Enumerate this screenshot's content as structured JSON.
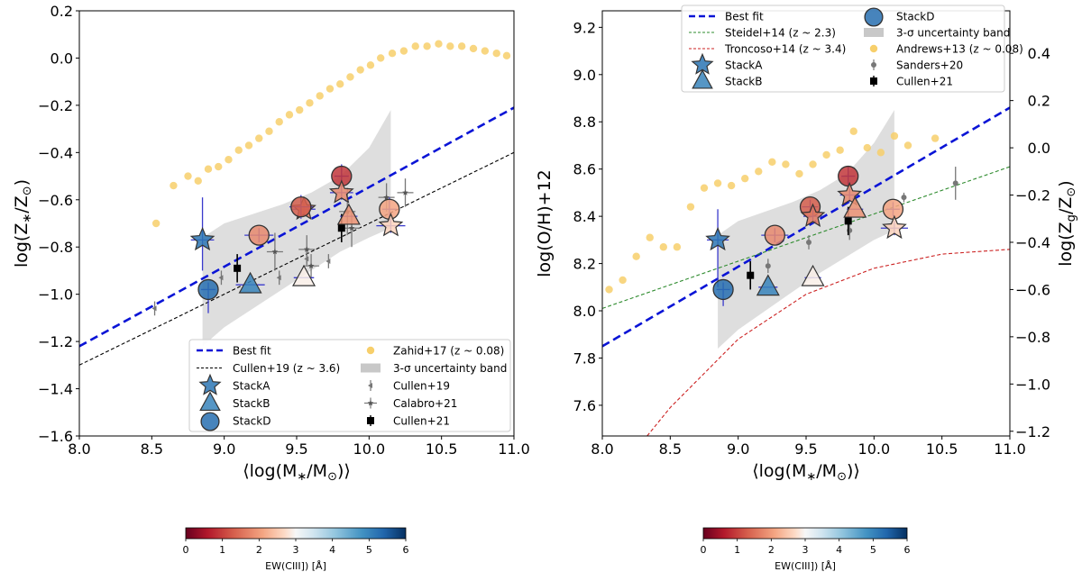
{
  "chart_data": [
    {
      "type": "scatter",
      "panel": "left",
      "xlabel": "⟨log(M*/M☉)⟩",
      "ylabel": "log(Z*/Z☉)",
      "xlim": [
        8.0,
        11.0
      ],
      "ylim": [
        -1.6,
        0.2
      ],
      "xticks": [
        8.0,
        8.5,
        9.0,
        9.5,
        10.0,
        10.5,
        11.0
      ],
      "yticks": [
        -1.6,
        -1.4,
        -1.2,
        -1.0,
        -0.8,
        -0.6,
        -0.4,
        -0.2,
        0.0,
        0.2
      ],
      "xtick_labels": [
        "8.0",
        "8.5",
        "9.0",
        "9.5",
        "10.0",
        "10.5",
        "11.0"
      ],
      "ytick_labels": [
        "−1.6",
        "−1.4",
        "−1.2",
        "−1.0",
        "−0.8",
        "−0.6",
        "−0.4",
        "−0.2",
        "0.0",
        "0.2"
      ],
      "lines": [
        {
          "name": "Best fit",
          "x": [
            8.0,
            11.0
          ],
          "y": [
            -1.22,
            -0.21
          ],
          "color": "#0a14d6",
          "style": "dashed-thick"
        },
        {
          "name": "Cullen+19 (z ~ 3.6)",
          "x": [
            8.0,
            11.0
          ],
          "y": [
            -1.3,
            -0.4
          ],
          "color": "#000000",
          "style": "dashed-thin"
        }
      ],
      "band": {
        "name": "3-σ uncertainty band",
        "x": [
          8.85,
          9.0,
          9.2,
          9.4,
          9.6,
          9.8,
          10.0,
          10.15
        ],
        "upper": [
          -0.76,
          -0.7,
          -0.66,
          -0.62,
          -0.57,
          -0.5,
          -0.38,
          -0.22
        ],
        "lower": [
          -1.22,
          -1.14,
          -1.06,
          -0.98,
          -0.9,
          -0.82,
          -0.76,
          -0.72
        ]
      },
      "reference": {
        "name": "Zahid+17 (z ~ 0.08)",
        "x": [
          8.53,
          8.65,
          8.75,
          8.82,
          8.89,
          8.96,
          9.03,
          9.1,
          9.17,
          9.24,
          9.31,
          9.38,
          9.45,
          9.52,
          9.59,
          9.66,
          9.73,
          9.8,
          9.87,
          9.94,
          10.01,
          10.08,
          10.16,
          10.24,
          10.32,
          10.4,
          10.48,
          10.56,
          10.64,
          10.72,
          10.8,
          10.88,
          10.95
        ],
        "y": [
          -0.7,
          -0.54,
          -0.5,
          -0.52,
          -0.47,
          -0.46,
          -0.43,
          -0.39,
          -0.37,
          -0.34,
          -0.31,
          -0.27,
          -0.24,
          -0.22,
          -0.19,
          -0.16,
          -0.13,
          -0.11,
          -0.08,
          -0.05,
          -0.03,
          0.0,
          0.02,
          0.03,
          0.05,
          0.05,
          0.06,
          0.05,
          0.05,
          0.04,
          0.03,
          0.02,
          0.01
        ],
        "color": "#f7cf6b"
      },
      "stacks": [
        {
          "name": "StackA",
          "marker": "star",
          "x": 8.85,
          "y": -0.77,
          "ew": 5.2,
          "xerr": 0.08,
          "yerr": [
            0.13,
            0.18
          ]
        },
        {
          "name": "StackB",
          "marker": "triangle",
          "x": 9.18,
          "y": -0.96,
          "ew": 5.0,
          "xerr": 0.1,
          "yerr": [
            0.0,
            0.0
          ]
        },
        {
          "name": "StackD",
          "marker": "circle",
          "x": 8.89,
          "y": -0.98,
          "ew": 5.3,
          "xerr": 0.05,
          "yerr": [
            0.1,
            0.03
          ]
        },
        {
          "name": "",
          "marker": "star",
          "x": 9.55,
          "y": -0.64,
          "ew": 1.6,
          "xerr": 0.08,
          "yerr": [
            0.03,
            0.03
          ]
        },
        {
          "name": "",
          "marker": "circle",
          "x": 9.24,
          "y": -0.75,
          "ew": 1.8,
          "xerr": 0.1,
          "yerr": [
            0.03,
            0.03
          ]
        },
        {
          "name": "",
          "marker": "circle",
          "x": 9.53,
          "y": -0.63,
          "ew": 1.3,
          "xerr": 0.08,
          "yerr": [
            0.05,
            0.05
          ]
        },
        {
          "name": "",
          "marker": "circle",
          "x": 9.81,
          "y": -0.5,
          "ew": 0.9,
          "xerr": 0.05,
          "yerr": [
            0.05,
            0.05
          ]
        },
        {
          "name": "",
          "marker": "star",
          "x": 9.81,
          "y": -0.57,
          "ew": 1.8,
          "xerr": 0.08,
          "yerr": [
            0.03,
            0.03
          ]
        },
        {
          "name": "",
          "marker": "triangle",
          "x": 9.86,
          "y": -0.67,
          "ew": 1.9,
          "xerr": 0.06,
          "yerr": [
            0.0,
            0.0
          ]
        },
        {
          "name": "",
          "marker": "circle",
          "x": 10.14,
          "y": -0.64,
          "ew": 2.1,
          "xerr": 0.05,
          "yerr": [
            0.05,
            0.05
          ]
        },
        {
          "name": "",
          "marker": "star",
          "x": 10.15,
          "y": -0.71,
          "ew": 2.6,
          "xerr": 0.1,
          "yerr": [
            0.03,
            0.03
          ]
        },
        {
          "name": "",
          "marker": "triangle",
          "x": 9.55,
          "y": -0.93,
          "ew": 2.9,
          "xerr": 0.07,
          "yerr": [
            0.0,
            0.0
          ]
        }
      ],
      "cullen19": {
        "name": "Cullen+19",
        "x": [
          8.52,
          8.98,
          9.38,
          9.57,
          9.72
        ],
        "y": [
          -1.06,
          -0.93,
          -0.93,
          -0.85,
          -0.86
        ],
        "yerr": [
          0.03,
          0.03,
          0.03,
          0.03,
          0.03
        ]
      },
      "calabro21": {
        "name": "Calabro+21",
        "x": [
          9.35,
          9.57,
          9.6,
          9.85,
          9.88,
          10.12,
          10.25
        ],
        "y": [
          -0.82,
          -0.81,
          -0.88,
          -0.65,
          -0.72,
          -0.59,
          -0.57
        ],
        "yerr": [
          0.08,
          0.06,
          0.05,
          0.1,
          0.08,
          0.06,
          0.06
        ]
      },
      "cullen21": {
        "name": "Cullen+21",
        "x": [
          9.09,
          9.81
        ],
        "y": [
          -0.89,
          -0.72
        ],
        "yerr": [
          0.06,
          0.06
        ]
      },
      "legend": {
        "position": "lower-right",
        "col1": [
          "Best fit",
          "Cullen+19 (z ~ 3.6)",
          "StackA",
          "StackB",
          "StackD"
        ],
        "col2": [
          "Zahid+17 (z ~ 0.08)",
          "3-σ uncertainty band",
          "Cullen+19",
          "Calabro+21",
          "Cullen+21"
        ]
      },
      "colorbar": {
        "label": "EW(CIII]) [Å]",
        "range": [
          0,
          6
        ],
        "ticks": [
          "0",
          "1",
          "2",
          "3",
          "4",
          "5",
          "6"
        ],
        "colormap": "RdBu"
      }
    },
    {
      "type": "scatter",
      "panel": "right",
      "xlabel": "⟨log(M*/M☉)⟩",
      "ylabel": "log(O/H)+12",
      "ylabel_right": "log(Zg/Z☉)",
      "xlim": [
        8.0,
        11.0
      ],
      "ylim": [
        7.47,
        9.27
      ],
      "ylim_right": [
        -1.22,
        0.58
      ],
      "xticks": [
        8.0,
        8.5,
        9.0,
        9.5,
        10.0,
        10.5,
        11.0
      ],
      "yticks": [
        7.6,
        7.8,
        8.0,
        8.2,
        8.4,
        8.6,
        8.8,
        9.0,
        9.2
      ],
      "yticks_right": [
        -1.2,
        -1.0,
        -0.8,
        -0.6,
        -0.4,
        -0.2,
        0.0,
        0.2,
        0.4
      ],
      "xtick_labels": [
        "8.0",
        "8.5",
        "9.0",
        "9.5",
        "10.0",
        "10.5",
        "11.0"
      ],
      "ytick_labels": [
        "7.6",
        "7.8",
        "8.0",
        "8.2",
        "8.4",
        "8.6",
        "8.8",
        "9.0",
        "9.2"
      ],
      "ytick_labels_right": [
        "−1.2",
        "−1.0",
        "−0.8",
        "−0.6",
        "−0.4",
        "−0.2",
        "0.0",
        "0.2",
        "0.4"
      ],
      "lines": [
        {
          "name": "Best fit",
          "x": [
            8.0,
            11.0
          ],
          "y": [
            7.85,
            8.86
          ],
          "color": "#0a14d6",
          "style": "dashed-thick"
        },
        {
          "name": "Steidel+14 (z ~ 2.3)",
          "x": [
            8.0,
            11.0
          ],
          "y": [
            8.01,
            8.61
          ],
          "color": "#2e8b2e",
          "style": "dashed-thin"
        },
        {
          "name": "Troncoso+14 (z ~ 3.4)",
          "x": [
            8.33,
            8.5,
            9.0,
            9.5,
            10.0,
            10.5,
            11.0
          ],
          "y": [
            7.47,
            7.59,
            7.88,
            8.07,
            8.18,
            8.24,
            8.26
          ],
          "color": "#cc2222",
          "style": "dashed-thin"
        }
      ],
      "band": {
        "name": "3-σ uncertainty band",
        "x": [
          8.85,
          9.0,
          9.2,
          9.4,
          9.6,
          9.8,
          10.0,
          10.15
        ],
        "upper": [
          8.32,
          8.38,
          8.42,
          8.46,
          8.51,
          8.58,
          8.71,
          8.85
        ],
        "lower": [
          7.84,
          7.92,
          8.0,
          8.08,
          8.16,
          8.23,
          8.3,
          8.34
        ]
      },
      "reference": {
        "name": "Andrews+13 (z ~ 0.08)",
        "x": [
          8.05,
          8.15,
          8.25,
          8.35,
          8.45,
          8.55,
          8.65,
          8.75,
          8.85,
          8.95,
          9.05,
          9.15,
          9.25,
          9.35,
          9.45,
          9.55,
          9.65,
          9.75,
          9.85,
          9.95,
          10.05,
          10.15,
          10.25,
          10.45
        ],
        "y": [
          8.09,
          8.13,
          8.23,
          8.31,
          8.27,
          8.27,
          8.44,
          8.52,
          8.54,
          8.53,
          8.56,
          8.59,
          8.63,
          8.62,
          8.58,
          8.62,
          8.66,
          8.68,
          8.76,
          8.69,
          8.67,
          8.74,
          8.7,
          8.73
        ],
        "color": "#f7cf6b"
      },
      "stacks": [
        {
          "name": "StackA",
          "marker": "star",
          "x": 8.85,
          "y": 8.3,
          "ew": 5.2,
          "xerr": 0.08,
          "yerr": [
            0.2,
            0.13
          ]
        },
        {
          "name": "StackB",
          "marker": "triangle",
          "x": 9.22,
          "y": 8.1,
          "ew": 5.0,
          "xerr": 0.07,
          "yerr": [
            0.0,
            0.0
          ]
        },
        {
          "name": "StackD",
          "marker": "circle",
          "x": 8.89,
          "y": 8.09,
          "ew": 5.3,
          "xerr": 0.05,
          "yerr": [
            0.07,
            0.03
          ]
        },
        {
          "name": "",
          "marker": "circle",
          "x": 9.27,
          "y": 8.32,
          "ew": 1.8,
          "xerr": 0.1,
          "yerr": [
            0.03,
            0.03
          ]
        },
        {
          "name": "",
          "marker": "circle",
          "x": 9.53,
          "y": 8.44,
          "ew": 1.3,
          "xerr": 0.06,
          "yerr": [
            0.03,
            0.03
          ]
        },
        {
          "name": "",
          "marker": "star",
          "x": 9.55,
          "y": 8.4,
          "ew": 1.6,
          "xerr": 0.07,
          "yerr": [
            0.03,
            0.03
          ]
        },
        {
          "name": "",
          "marker": "circle",
          "x": 9.81,
          "y": 8.57,
          "ew": 0.9,
          "xerr": 0.05,
          "yerr": [
            0.04,
            0.04
          ]
        },
        {
          "name": "",
          "marker": "star",
          "x": 9.82,
          "y": 8.49,
          "ew": 1.8,
          "xerr": 0.07,
          "yerr": [
            0.03,
            0.03
          ]
        },
        {
          "name": "",
          "marker": "triangle",
          "x": 9.86,
          "y": 8.43,
          "ew": 1.9,
          "xerr": 0.06,
          "yerr": [
            0.0,
            0.0
          ]
        },
        {
          "name": "",
          "marker": "circle",
          "x": 10.14,
          "y": 8.43,
          "ew": 2.1,
          "xerr": 0.05,
          "yerr": [
            0.03,
            0.03
          ]
        },
        {
          "name": "",
          "marker": "star",
          "x": 10.15,
          "y": 8.35,
          "ew": 2.6,
          "xerr": 0.1,
          "yerr": [
            0.03,
            0.03
          ]
        },
        {
          "name": "",
          "marker": "triangle",
          "x": 9.55,
          "y": 8.14,
          "ew": 2.9,
          "xerr": 0.06,
          "yerr": [
            0.0,
            0.0
          ]
        }
      ],
      "sanders20": {
        "name": "Sanders+20",
        "x": [
          9.22,
          9.52,
          9.82,
          10.22,
          10.6
        ],
        "y": [
          8.19,
          8.29,
          8.34,
          8.48,
          8.54
        ],
        "yerr": [
          0.03,
          0.03,
          0.04,
          0.02,
          0.07
        ]
      },
      "cullen21": {
        "name": "Cullen+21",
        "x": [
          9.09,
          9.81
        ],
        "y": [
          8.15,
          8.38
        ],
        "yerr": [
          0.06,
          0.06
        ]
      },
      "legend": {
        "position": "upper-left",
        "col1": [
          "Best fit",
          "Steidel+14 (z ~ 2.3)",
          "Troncoso+14 (z ~ 3.4)",
          "StackA",
          "StackB"
        ],
        "col2": [
          "StackD",
          "3-σ uncertainty band",
          "Andrews+13 (z ~ 0.08)",
          "Sanders+20",
          "Cullen+21"
        ]
      },
      "colorbar": {
        "label": "EW(CIII]) [Å]",
        "range": [
          0,
          6
        ],
        "ticks": [
          "0",
          "1",
          "2",
          "3",
          "4",
          "5",
          "6"
        ],
        "colormap": "RdBu"
      }
    }
  ]
}
